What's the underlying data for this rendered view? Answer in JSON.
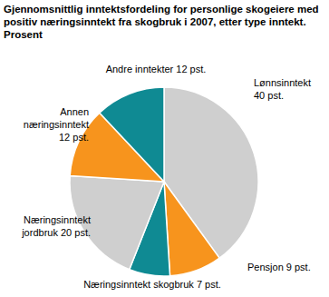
{
  "chart_data": {
    "type": "pie",
    "title": "Gjennomsnittlig inntektsfordeling for personlige skogeiere med positiv næringsinntekt fra skogbruk i 2007, etter type inntekt. Prosent",
    "categories": [
      "Lønnsinntekt",
      "Pensjon",
      "Næringsinntekt skogbruk",
      "Næringsinntekt jordbruk",
      "Annen næringsinntekt",
      "Andre inntekter"
    ],
    "values": [
      40,
      9,
      7,
      20,
      12,
      12
    ],
    "value_labels": [
      "40 pst.",
      "9 pst.",
      "7 pst.",
      "20 pst.",
      "12 pst.",
      "12 pst."
    ],
    "colors": [
      "#cfcfcf",
      "#f7941d",
      "#0f8a93",
      "#cfcfcf",
      "#f7941d",
      "#0f8a93"
    ],
    "data_labels": true
  }
}
